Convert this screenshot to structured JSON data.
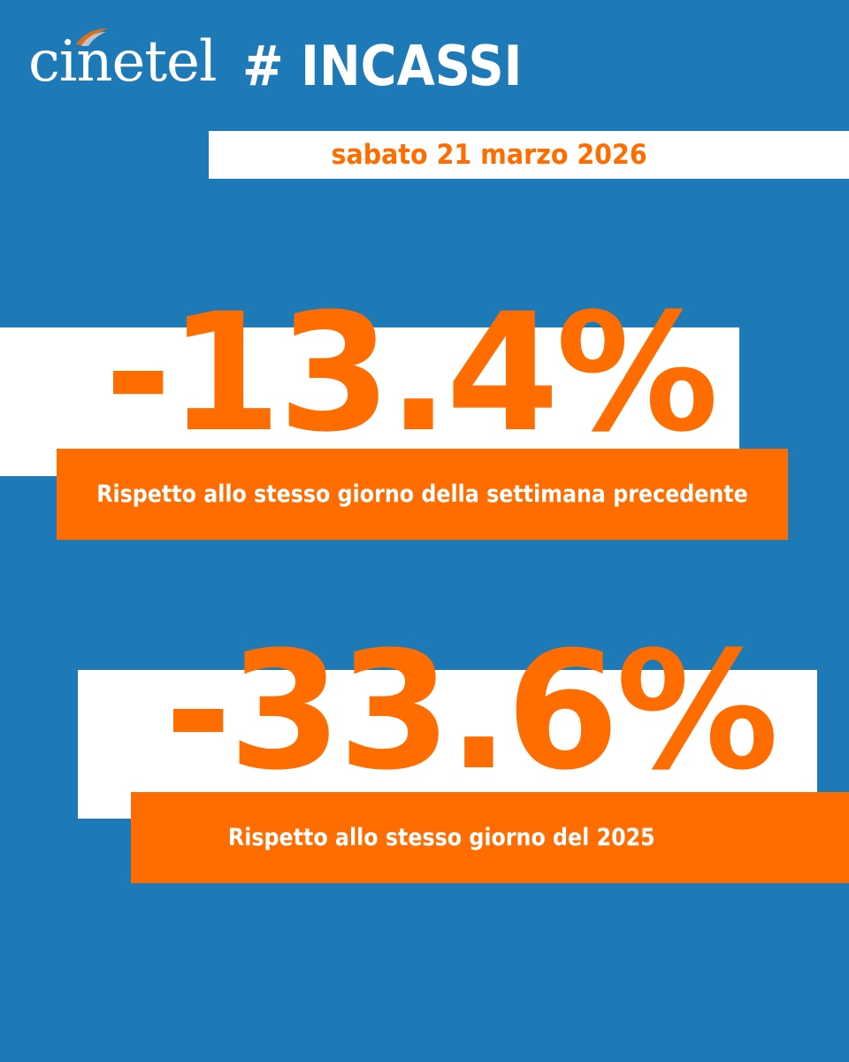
{
  "header": {
    "logo_text": "cinetel",
    "hashtag": "# INCASSI"
  },
  "date": "sabato 21 marzo 2026",
  "stats": [
    {
      "value": "-13.4%",
      "caption": "Rispetto allo stesso giorno della settimana precedente"
    },
    {
      "value": "-33.6%",
      "caption": "Rispetto allo stesso giorno del 2025"
    }
  ],
  "colors": {
    "background": "#1e7ab6",
    "accent": "#ff6c00",
    "panel": "#ffffff"
  }
}
